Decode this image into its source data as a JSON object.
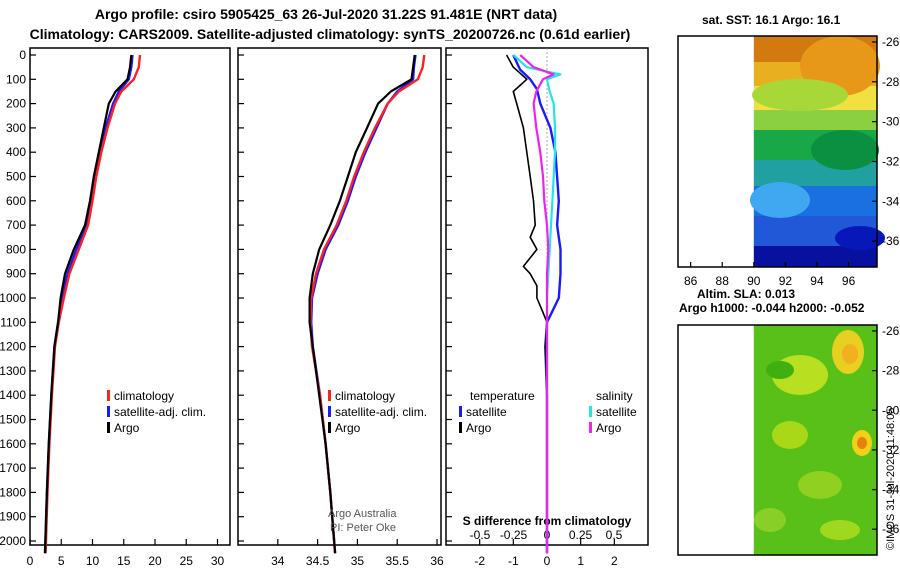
{
  "titles": {
    "line1": "Argo profile: csiro 5905425_63 26-Jul-2020 31.22S 91.481E (NRT data)",
    "line2": "Climatology: CARS2009. Satellite-adjusted climatology: synTS_20200726.nc (0.61d earlier)",
    "sst": "sat. SST: 16.1 Argo: 16.1",
    "sla1": "Altim. SLA: 0.013",
    "sla2": "Argo h1000: -0.044 h2000: -0.052"
  },
  "credit": "©IMOS 31-Jul-2020 11:48:05",
  "colors": {
    "climatology": "#ff2020",
    "satellite": "#1a1aff",
    "argo": "#000000",
    "sal_sat": "#22e6e6",
    "sal_argo": "#ee22ee"
  },
  "chart_data": [
    {
      "type": "line",
      "name": "temperature-profile",
      "xlabel": "",
      "ylabel": "",
      "xlim": [
        0,
        32
      ],
      "ylim": [
        0,
        2050
      ],
      "xticks": [
        0,
        5,
        10,
        15,
        20,
        25,
        30
      ],
      "yticks": [
        0,
        100,
        200,
        300,
        400,
        500,
        600,
        700,
        800,
        900,
        1000,
        1100,
        1200,
        1300,
        1400,
        1500,
        1600,
        1700,
        1800,
        1900,
        2000
      ],
      "legend": [
        "climatology",
        "satellite-adj. clim.",
        "Argo"
      ],
      "series": [
        {
          "name": "climatology",
          "depth": [
            0,
            50,
            100,
            150,
            200,
            300,
            400,
            500,
            600,
            700,
            800,
            900,
            1000,
            1100,
            1200,
            1400,
            1600,
            1800,
            2050
          ],
          "values": [
            17.6,
            17.4,
            16.6,
            14.6,
            13.6,
            12.4,
            11.4,
            10.6,
            10.0,
            9.3,
            7.8,
            6.3,
            5.4,
            4.6,
            4.0,
            3.5,
            3.1,
            2.8,
            2.5
          ]
        },
        {
          "name": "satellite-adj. clim.",
          "depth": [
            0,
            50,
            100,
            150,
            200,
            300,
            400,
            500,
            600,
            700,
            800,
            900,
            1000,
            1100,
            1200,
            1400,
            1600,
            1800,
            2050
          ],
          "values": [
            16.4,
            16.2,
            15.8,
            14.2,
            13.3,
            12.1,
            11.2,
            10.4,
            9.8,
            9.1,
            7.4,
            6.0,
            5.1,
            4.5,
            3.9,
            3.4,
            3.0,
            2.7,
            2.4
          ]
        },
        {
          "name": "Argo",
          "depth": [
            0,
            50,
            100,
            150,
            200,
            300,
            400,
            500,
            600,
            700,
            800,
            900,
            1000,
            1100,
            1200,
            1400,
            1600,
            1800,
            2050
          ],
          "values": [
            16.2,
            16.0,
            15.6,
            13.7,
            12.6,
            11.8,
            11.0,
            10.2,
            9.6,
            8.8,
            7.0,
            5.6,
            4.9,
            4.5,
            3.9,
            3.4,
            3.0,
            2.7,
            2.4
          ]
        }
      ]
    },
    {
      "type": "line",
      "name": "salinity-profile",
      "xlim": [
        33.5,
        36.05
      ],
      "ylim": [
        0,
        2050
      ],
      "xticks": [
        34,
        34.5,
        35,
        35.5,
        36
      ],
      "xticklabels": [
        "34",
        "34.5",
        "35",
        "35.5",
        "36"
      ],
      "legend": [
        "climatology",
        "satellite-adj. clim.",
        "Argo"
      ],
      "annotation": [
        "Argo Australia",
        "PI: Peter Oke"
      ],
      "series": [
        {
          "name": "climatology",
          "depth": [
            0,
            50,
            100,
            150,
            200,
            300,
            400,
            500,
            600,
            700,
            800,
            900,
            1000,
            1100,
            1200,
            1400,
            1600,
            1800,
            2050
          ],
          "values": [
            35.84,
            35.82,
            35.76,
            35.52,
            35.38,
            35.22,
            35.08,
            34.96,
            34.86,
            34.74,
            34.58,
            34.48,
            34.42,
            34.41,
            34.43,
            34.53,
            34.6,
            34.66,
            34.72
          ]
        },
        {
          "name": "satellite-adj. clim.",
          "depth": [
            0,
            50,
            100,
            150,
            200,
            300,
            400,
            500,
            600,
            700,
            800,
            900,
            1000,
            1100,
            1200,
            1400,
            1600,
            1800,
            2050
          ],
          "values": [
            35.73,
            35.71,
            35.7,
            35.5,
            35.38,
            35.24,
            35.1,
            34.98,
            34.88,
            34.76,
            34.6,
            34.5,
            34.43,
            34.42,
            34.44,
            34.53,
            34.6,
            34.66,
            34.72
          ]
        },
        {
          "name": "Argo",
          "depth": [
            0,
            50,
            100,
            150,
            200,
            300,
            400,
            500,
            600,
            700,
            800,
            900,
            1000,
            1100,
            1200,
            1400,
            1600,
            1800,
            2050
          ],
          "values": [
            35.72,
            35.7,
            35.68,
            35.42,
            35.26,
            35.12,
            34.98,
            34.88,
            34.78,
            34.66,
            34.52,
            34.44,
            34.4,
            34.4,
            34.44,
            34.52,
            34.6,
            34.66,
            34.72
          ]
        }
      ]
    },
    {
      "type": "line",
      "name": "difference-from-climatology",
      "xlim": [
        -3,
        3
      ],
      "ylim": [
        0,
        2050
      ],
      "xticks": [
        -2,
        -1,
        0,
        1,
        2
      ],
      "sticks": [
        -0.5,
        -0.25,
        0,
        0.25,
        0.5
      ],
      "stickl": [
        "-0.5",
        "-0.25",
        "0",
        "0.25",
        "0.5"
      ],
      "xlabel": "S difference from climatology",
      "legend_headers": [
        "temperature",
        "salinity"
      ],
      "legend": [
        "satellite",
        "Argo",
        "satellite",
        "Argo"
      ],
      "series": [
        {
          "name": "temp satellite",
          "depth": [
            0,
            60,
            100,
            140,
            200,
            300,
            400,
            500,
            600,
            700,
            800,
            900,
            1000,
            1100,
            1200,
            1400,
            1600,
            1800,
            2050
          ],
          "values": [
            -1.0,
            -0.8,
            -0.5,
            -0.3,
            -0.2,
            0.1,
            0.25,
            0.3,
            0.35,
            0.3,
            0.4,
            0.4,
            0.35,
            0.0,
            -0.05,
            0.0,
            0.0,
            0.0,
            0.0
          ]
        },
        {
          "name": "temp Argo",
          "depth": [
            0,
            50,
            75,
            100,
            150,
            200,
            300,
            400,
            500,
            600,
            700,
            750,
            800,
            870,
            900,
            950,
            1000,
            1050,
            1100,
            1200,
            1400,
            1600,
            1800,
            2050
          ],
          "values": [
            -1.2,
            -1.0,
            -0.8,
            -0.6,
            -1.0,
            -0.9,
            -0.7,
            -0.6,
            -0.5,
            -0.4,
            -0.35,
            -0.5,
            -0.3,
            -0.7,
            -0.5,
            -0.3,
            -0.3,
            -0.15,
            0.0,
            -0.05,
            0.0,
            0.0,
            0.0,
            0.0
          ]
        },
        {
          "name": "sal satellite",
          "depth": [
            0,
            50,
            80,
            100,
            150,
            200,
            300,
            400,
            500,
            600,
            700,
            800,
            900,
            1000,
            1100,
            1200,
            1400,
            1600,
            1800,
            2050
          ],
          "values": [
            -0.25,
            -0.15,
            0.1,
            0.0,
            0.02,
            0.05,
            0.06,
            0.06,
            0.05,
            0.04,
            0.03,
            0.02,
            0.01,
            0.0,
            0.0,
            0.0,
            0.0,
            0.0,
            0.0,
            0.0
          ]
        },
        {
          "name": "sal Argo",
          "depth": [
            0,
            50,
            80,
            100,
            150,
            200,
            300,
            400,
            500,
            600,
            700,
            800,
            900,
            1000,
            1100,
            1200,
            1400,
            1600,
            1800,
            2050
          ],
          "values": [
            -0.2,
            -0.1,
            0.05,
            -0.03,
            -0.08,
            -0.1,
            -0.08,
            -0.05,
            -0.03,
            -0.02,
            0.0,
            0.01,
            0.0,
            0.0,
            0.0,
            0.0,
            0.0,
            0.0,
            0.0,
            0.0
          ]
        }
      ]
    },
    {
      "type": "heatmap",
      "name": "sst-map",
      "xticks": [
        86,
        88,
        90,
        92,
        94,
        96
      ],
      "yticks": [
        -26,
        -28,
        -30,
        -32,
        -34,
        -36
      ],
      "xlim": [
        85.2,
        97.8
      ],
      "ylim": [
        -37.3,
        -25.7
      ]
    },
    {
      "type": "heatmap",
      "name": "sla-map",
      "yticks": [
        -26,
        -28,
        -30,
        -32,
        -34,
        -36
      ],
      "xlim": [
        85.2,
        97.8
      ],
      "ylim": [
        -37.3,
        -25.7
      ]
    }
  ]
}
